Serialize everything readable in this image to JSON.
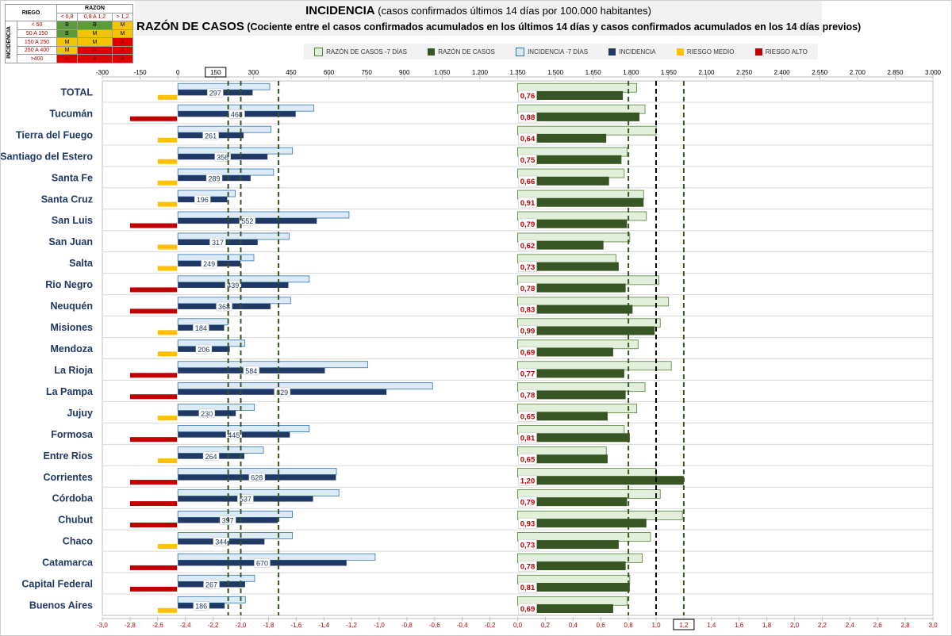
{
  "title": {
    "line1_bold": "INCIDENCIA",
    "line1_rest": "(casos confirmados últimos 14 días por 100.000 habitantes)",
    "line2_bold": "RAZÓN DE CASOS",
    "line2_rest": "(Cociente entre el casos confirmados acumulados en los últimos 14 días y casos confirmados acumulados en los 14 días previos)"
  },
  "risk_matrix": {
    "riesgo_label": "RIEGO",
    "razon_label": "RAZON",
    "incidencia_label": "INCIDENCIA",
    "razon_ranges": [
      "< 0,8",
      "0,8 A 1,2",
      "> 1,2"
    ],
    "rows": [
      {
        "range": "< 50",
        "cells": [
          "B",
          "B",
          "M"
        ]
      },
      {
        "range": "50 A 150",
        "cells": [
          "B",
          "M",
          "M"
        ]
      },
      {
        "range": "150 A 250",
        "cells": [
          "M",
          "M",
          "A"
        ]
      },
      {
        "range": "250 A 400",
        "cells": [
          "M",
          "A",
          "A"
        ]
      },
      {
        "range": ">400",
        "cells": [
          "A",
          "A",
          "A"
        ]
      }
    ]
  },
  "legend": [
    {
      "label": "RAZÓN DE CASOS -7 DÍAS",
      "color": "#e2efda",
      "stroke": "#548235"
    },
    {
      "label": "RAZÓN DE CASOS",
      "color": "#375623",
      "stroke": "#375623"
    },
    {
      "label": "INCIDENCIA -7 DÍAS",
      "color": "#ddebf7",
      "stroke": "#2e75b6"
    },
    {
      "label": "INCIDENCIA",
      "color": "#1f3864",
      "stroke": "#1f3864"
    },
    {
      "label": "RIESGO MEDIO",
      "color": "#ffc000",
      "stroke": "#ffc000"
    },
    {
      "label": "RIESGO ALTO",
      "color": "#c00000",
      "stroke": "#c00000"
    }
  ],
  "colors": {
    "incidencia": "#1f3864",
    "incidencia_prev": "#ddebf7",
    "incidencia_prev_stroke": "#2e75b6",
    "razon": "#375623",
    "razon_prev": "#e2efda",
    "razon_prev_stroke": "#548235",
    "riesgo_medio": "#ffc000",
    "riesgo_alto": "#c00000",
    "ref_green": "#375623",
    "ref_black": "#000000",
    "razon_label_text": "#c00000"
  },
  "chart_data": {
    "type": "bar",
    "orientation": "horizontal",
    "categories": [
      "TOTAL",
      "Tucumán",
      "Tierra del Fuego",
      "Santiago del Estero",
      "Santa Fe",
      "Santa Cruz",
      "San Luis",
      "San Juan",
      "Salta",
      "Rio Negro",
      "Neuquén",
      "Misiones",
      "Mendoza",
      "La Rioja",
      "La Pampa",
      "Jujuy",
      "Formosa",
      "Entre Rios",
      "Corrientes",
      "Córdoba",
      "Chubut",
      "Chaco",
      "Catamarca",
      "Capital Federal",
      "Buenos Aires"
    ],
    "top_axis": {
      "min": -300,
      "max": 3000,
      "ticks": [
        -300,
        -150,
        0,
        150,
        300,
        450,
        600,
        750,
        900,
        1050,
        1200,
        1350,
        1500,
        1650,
        1800,
        1950,
        2100,
        2250,
        2400,
        2550,
        2700,
        2850,
        3000
      ],
      "tick_labels": [
        "-300",
        "-150",
        "0",
        "150",
        "300",
        "450",
        "600",
        "750",
        "900",
        "1.050",
        "1.200",
        "1.350",
        "1.500",
        "1.650",
        "1.800",
        "1.950",
        "2.100",
        "2.250",
        "2.400",
        "2.550",
        "2.700",
        "2.850",
        "3.000"
      ],
      "boxed_label": "150"
    },
    "bottom_axis": {
      "min": -3.0,
      "max": 3.0,
      "ticks": [
        -3.0,
        -2.8,
        -2.6,
        -2.4,
        -2.2,
        -2.0,
        -1.8,
        -1.6,
        -1.4,
        -1.2,
        -1.0,
        -0.8,
        -0.6,
        -0.4,
        -0.2,
        0.0,
        0.2,
        0.4,
        0.6,
        0.8,
        1.0,
        1.2,
        1.4,
        1.6,
        1.8,
        2.0,
        2.2,
        2.4,
        2.6,
        2.8,
        3.0
      ],
      "tick_labels": [
        "-3,0",
        "-2,8",
        "-2,6",
        "-2,4",
        "-2,2",
        "-2,0",
        "-1,8",
        "-1,6",
        "-1,4",
        "-1,2",
        "-1,0",
        "-0,8",
        "-0,6",
        "-0,4",
        "-0,2",
        "0,0",
        "0,2",
        "0,4",
        "0,6",
        "0,8",
        "1,0",
        "1,2",
        "1,4",
        "1,6",
        "1,8",
        "2,0",
        "2,2",
        "2,4",
        "2,6",
        "2,8",
        "3,0"
      ],
      "boxed_label": "1,2"
    },
    "reference_lines_incidencia": [
      {
        "value": 200,
        "color": "green"
      },
      {
        "value": 250,
        "color": "green"
      },
      {
        "value": 400,
        "color": "green"
      }
    ],
    "reference_lines_razon": [
      {
        "value": 0.8,
        "color": "green"
      },
      {
        "value": 1.0,
        "color": "black"
      },
      {
        "value": 1.2,
        "color": "green"
      }
    ],
    "series": [
      {
        "name": "INCIDENCIA",
        "values": [
          297,
          468,
          261,
          356,
          289,
          196,
          552,
          317,
          249,
          439,
          368,
          184,
          206,
          584,
          829,
          230,
          445,
          264,
          628,
          537,
          397,
          344,
          670,
          267,
          186
        ]
      },
      {
        "name": "INCIDENCIA -7 DÍAS",
        "values": [
          365,
          540,
          370,
          455,
          380,
          228,
          680,
          442,
          302,
          522,
          448,
          200,
          266,
          754,
          1012,
          304,
          522,
          340,
          630,
          640,
          455,
          455,
          784,
          305,
          268
        ]
      },
      {
        "name": "RAZÓN DE CASOS",
        "values": [
          0.76,
          0.88,
          0.64,
          0.75,
          0.66,
          0.91,
          0.79,
          0.62,
          0.73,
          0.78,
          0.83,
          0.99,
          0.69,
          0.77,
          0.78,
          0.65,
          0.81,
          0.65,
          1.2,
          0.79,
          0.93,
          0.73,
          0.78,
          0.81,
          0.69
        ]
      },
      {
        "name": "RAZÓN DE CASOS -7 DÍAS",
        "values": [
          0.86,
          0.92,
          1.0,
          0.79,
          0.77,
          0.91,
          0.93,
          0.81,
          0.71,
          1.02,
          1.09,
          1.03,
          0.87,
          1.11,
          0.92,
          0.86,
          0.77,
          0.64,
          1.0,
          1.03,
          1.19,
          0.96,
          0.9,
          0.81,
          0.79
        ]
      },
      {
        "name": "riesgo",
        "values": [
          "M",
          "A",
          "M",
          "M",
          "M",
          "M",
          "A",
          "M",
          "M",
          "A",
          "A",
          "M",
          "M",
          "A",
          "A",
          "M",
          "A",
          "M",
          "A",
          "A",
          "A",
          "M",
          "A",
          "A",
          "M"
        ]
      },
      {
        "name": "labels_razon",
        "values": [
          "0,76",
          "0,88",
          "0,64",
          "0,75",
          "0,66",
          "0,91",
          "0,79",
          "0,62",
          "0,73",
          "0,78",
          "0,83",
          "0,99",
          "0,69",
          "0,77",
          "0,78",
          "0,65",
          "0,81",
          "0,65",
          "1,20",
          "0,79",
          "0,93",
          "0,73",
          "0,78",
          "0,81",
          "0,69"
        ]
      }
    ]
  }
}
